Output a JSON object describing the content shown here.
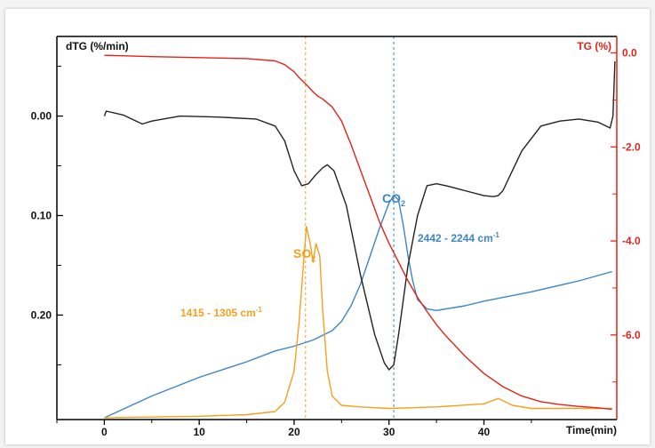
{
  "chart_data": {
    "type": "line",
    "left_axis_label": "dTG (%/min)",
    "right_axis_label": "TG (%)",
    "x_axis_label": "Time(min)",
    "x_ticks": [
      "0",
      "10",
      "20",
      "30",
      "40"
    ],
    "left_ticks": [
      "0.00",
      "0.10",
      "0.20"
    ],
    "right_ticks": [
      "0.0",
      "-2.0",
      "-4.0",
      "-6.0"
    ],
    "xlim": [
      -5,
      54
    ],
    "dtg_ylim_inverted": [
      -0.08,
      0.305
    ],
    "tg_ylim": [
      -7.8,
      0.35
    ],
    "gas_ylim": [
      0,
      1
    ],
    "annotations": {
      "so2_label": "SO",
      "so2_sub": "2",
      "so2_range": "1415 - 1305 cm",
      "so2_exp": "-1",
      "co2_label": "CO",
      "co2_sub": "2",
      "co2_range": "2442 - 2244 cm",
      "co2_exp": "-1"
    },
    "guide_lines_x": [
      21.2,
      30.5
    ],
    "colors": {
      "dtg": "#222222",
      "tg": "#e2231a",
      "co2": "#3d86c6",
      "so2": "#f5a020",
      "right_axis": "#e2231a"
    },
    "series": [
      {
        "key": "dtg",
        "axis": "left",
        "x": [
          0,
          0.2,
          2,
          4,
          5,
          8,
          12,
          16,
          18,
          19,
          20,
          20.8,
          21.5,
          22.2,
          23,
          23.5,
          24.2,
          25.5,
          27,
          28.5,
          29.5,
          30,
          30.5,
          31,
          32,
          33,
          34,
          35,
          36,
          38,
          40,
          41,
          41.5,
          42,
          43,
          44,
          46,
          48,
          50,
          52,
          53.3,
          53.6,
          53.8
        ],
        "y": [
          0.0,
          -0.005,
          -0.001,
          0.008,
          0.005,
          0.0,
          0.001,
          0.003,
          0.01,
          0.025,
          0.055,
          0.07,
          0.068,
          0.06,
          0.052,
          0.049,
          0.055,
          0.09,
          0.16,
          0.22,
          0.248,
          0.255,
          0.25,
          0.22,
          0.15,
          0.1,
          0.07,
          0.068,
          0.07,
          0.075,
          0.08,
          0.081,
          0.08,
          0.075,
          0.055,
          0.035,
          0.01,
          0.005,
          0.003,
          0.006,
          0.012,
          0.0,
          -0.055
        ]
      },
      {
        "key": "tg",
        "axis": "right",
        "x": [
          0,
          5,
          10,
          15,
          18,
          19,
          20,
          20.5,
          21,
          21.5,
          22,
          22.5,
          23,
          24,
          25,
          26,
          27,
          28,
          29,
          30,
          31,
          32,
          33,
          34,
          35,
          36,
          38,
          40,
          42,
          44,
          46,
          48,
          50,
          52,
          53.5
        ],
        "y": [
          -0.05,
          -0.08,
          -0.1,
          -0.12,
          -0.17,
          -0.25,
          -0.4,
          -0.52,
          -0.62,
          -0.72,
          -0.83,
          -0.92,
          -0.98,
          -1.15,
          -1.45,
          -1.95,
          -2.5,
          -3.05,
          -3.6,
          -4.05,
          -4.45,
          -4.85,
          -5.2,
          -5.5,
          -5.78,
          -6.02,
          -6.45,
          -6.82,
          -7.1,
          -7.3,
          -7.42,
          -7.48,
          -7.52,
          -7.55,
          -7.58
        ]
      },
      {
        "key": "co2",
        "axis": "gas",
        "x": [
          0,
          5,
          10,
          15,
          18,
          20,
          22,
          24,
          25,
          26,
          27,
          28,
          29,
          30,
          30.5,
          31,
          31.5,
          32,
          32.5,
          33,
          34,
          35,
          36,
          38,
          40,
          45,
          50,
          53.5
        ],
        "y": [
          0.0,
          0.07,
          0.13,
          0.18,
          0.215,
          0.23,
          0.25,
          0.28,
          0.31,
          0.36,
          0.43,
          0.52,
          0.61,
          0.69,
          0.715,
          0.7,
          0.62,
          0.52,
          0.44,
          0.38,
          0.35,
          0.345,
          0.35,
          0.36,
          0.375,
          0.405,
          0.44,
          0.47
        ]
      },
      {
        "key": "so2",
        "axis": "gas",
        "x": [
          0,
          10,
          15,
          18,
          19,
          20,
          20.5,
          21,
          21.3,
          21.7,
          22,
          22.3,
          22.7,
          23,
          23.5,
          24,
          25,
          27,
          30,
          35,
          40,
          41.5,
          43,
          45,
          50,
          53.5
        ],
        "y": [
          0.0,
          0.005,
          0.01,
          0.02,
          0.05,
          0.15,
          0.3,
          0.5,
          0.615,
          0.56,
          0.5,
          0.56,
          0.52,
          0.35,
          0.15,
          0.07,
          0.04,
          0.035,
          0.03,
          0.035,
          0.045,
          0.062,
          0.04,
          0.03,
          0.03,
          0.03
        ]
      }
    ]
  }
}
